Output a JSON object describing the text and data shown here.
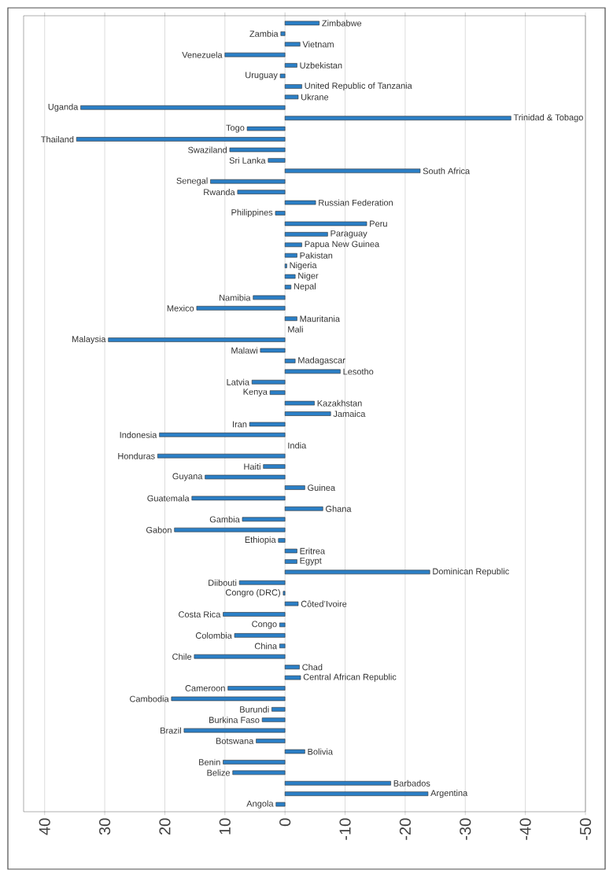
{
  "chart_data": {
    "type": "bar",
    "orientation": "horizontal",
    "color": "#2b7fc6",
    "grid": "x",
    "categories": [
      "Zimbabwe",
      "Zambia",
      "Vietnam",
      "Venezuela",
      "Uzbekistan",
      "Uruguay",
      "United Republic of Tanzania",
      "Ukrane",
      "Uganda",
      "Trinidad & Tobago",
      "Togo",
      "Thailand",
      "Swaziland",
      "Sri Lanka",
      "South Africa",
      "Senegal",
      "Rwanda",
      "Russian Federation",
      "Philippines",
      "Peru",
      "Paraguay",
      "Papua New Guinea",
      "Pakistan",
      "Nigeria",
      "Niger",
      "Nepal",
      "Namibia",
      "Mexico",
      "Mauritania",
      "Mali",
      "Malaysia",
      "Malawi",
      "Madagascar",
      "Lesotho",
      "Latvia",
      "Kenya",
      "Kazakhstan",
      "Jamaica",
      "Iran",
      "Indonesia",
      "India",
      "Honduras",
      "Haiti",
      "Guyana",
      "Guinea",
      "Guatemala",
      "Ghana",
      "Gambia",
      "Gabon",
      "Ethiopia",
      "Eritrea",
      "Egypt",
      "Dominican Republic",
      "Diibouti",
      "Congro (DRC)",
      "Côted’Ivoire",
      "Costa  Rica",
      "Congo",
      "Colombia",
      "China",
      "Chile",
      "Chad",
      "Central African Republic",
      "Cameroon",
      "Cambodia",
      "Burundi",
      "Burkina Faso",
      "Brazil",
      "Botswana",
      "Bolivia",
      "Benin",
      "Belize",
      "Barbados",
      "Argentina",
      "Angola"
    ],
    "values": [
      -5.7,
      0.7,
      -2.5,
      10.0,
      -2.0,
      0.8,
      -2.8,
      -2.2,
      34.0,
      -37.6,
      6.3,
      34.7,
      9.2,
      2.8,
      -22.5,
      12.4,
      7.9,
      -5.1,
      1.6,
      -13.6,
      -7.1,
      -2.8,
      -2.0,
      -0.3,
      -1.7,
      -1.0,
      5.3,
      14.7,
      -2.0,
      null,
      29.4,
      4.1,
      -1.7,
      -9.2,
      5.5,
      2.5,
      -4.9,
      -7.6,
      5.9,
      20.9,
      null,
      21.2,
      3.6,
      13.3,
      -3.3,
      15.5,
      -6.3,
      7.1,
      18.4,
      1.1,
      -2.0,
      -2.0,
      -24.1,
      7.6,
      0.3,
      -2.2,
      10.3,
      0.9,
      8.4,
      0.9,
      15.1,
      -2.4,
      -2.6,
      9.5,
      18.9,
      2.2,
      3.8,
      16.8,
      4.8,
      -3.3,
      10.3,
      8.7,
      -17.6,
      -23.8,
      1.5
    ],
    "xlim": [
      43.5,
      -50
    ],
    "xticks": [
      40,
      30,
      20,
      10,
      0,
      -10,
      -20,
      -30,
      -40,
      -50
    ]
  }
}
